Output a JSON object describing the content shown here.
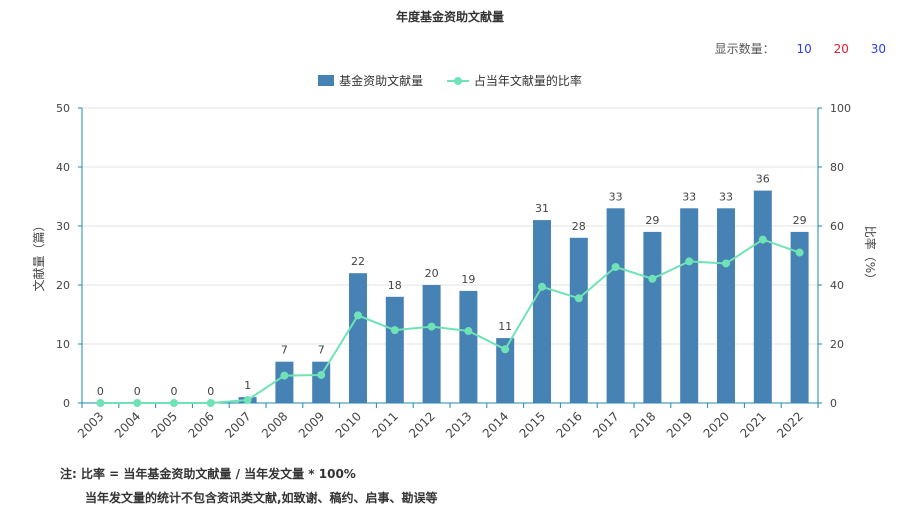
{
  "title": "年度基金资助文献量",
  "display_count": {
    "label": "显示数量：",
    "options": [
      {
        "label": "10",
        "color": "#2d3fe0"
      },
      {
        "label": "20",
        "color": "#e0202f"
      },
      {
        "label": "30",
        "color": "#2d3fe0"
      }
    ]
  },
  "notes": {
    "line1": "注:  比率 = 当年基金资助文献量 / 当年发文量 * 100%",
    "line2": "当年发文量的统计不包含资讯类文献,如致谢、稿约、启事、勘误等"
  },
  "chart_data": {
    "type": "bar",
    "categories": [
      "2003",
      "2004",
      "2005",
      "2006",
      "2007",
      "2008",
      "2009",
      "2010",
      "2011",
      "2012",
      "2013",
      "2014",
      "2015",
      "2016",
      "2017",
      "2018",
      "2019",
      "2020",
      "2021",
      "2022"
    ],
    "series": [
      {
        "name": "基金资助文献量",
        "type": "bar",
        "axis": "left",
        "color": "#4682b4",
        "values": [
          0,
          0,
          0,
          0,
          1,
          7,
          7,
          22,
          18,
          20,
          19,
          11,
          31,
          28,
          33,
          29,
          33,
          33,
          36,
          29
        ]
      },
      {
        "name": "占当年文献量的比率",
        "type": "line",
        "axis": "right",
        "color": "#6fe3b6",
        "values": [
          0,
          0,
          0,
          0,
          1,
          9.3,
          9.5,
          29.7,
          24.7,
          25.9,
          24.4,
          18.2,
          39.4,
          35.5,
          46.1,
          42.1,
          48,
          47.3,
          55.4,
          51
        ]
      }
    ],
    "ylabel": "文献量（篇）",
    "y2label": "比率（%）",
    "ylim": [
      0,
      50
    ],
    "yticks": [
      0,
      10,
      20,
      30,
      40,
      50
    ],
    "y2lim": [
      0,
      100
    ],
    "y2ticks": [
      0,
      20,
      40,
      60,
      80,
      100
    ],
    "data_labels": true,
    "grid": true,
    "legend_position": "top-center"
  }
}
